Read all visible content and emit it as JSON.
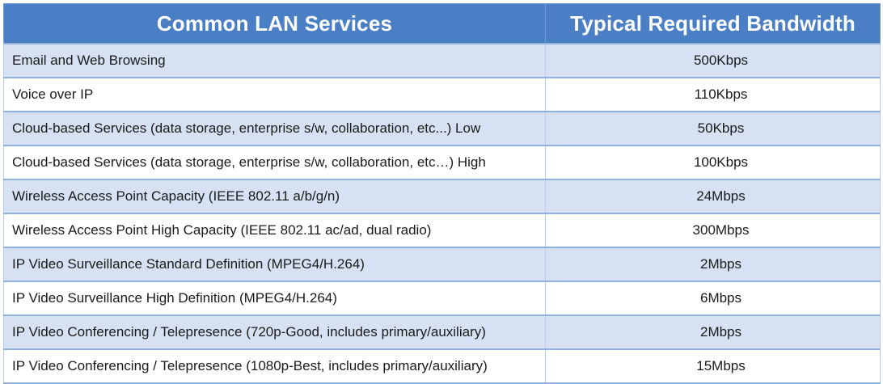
{
  "table": {
    "headers": {
      "service": "Common LAN Services",
      "bandwidth": "Typical Required Bandwidth"
    },
    "rows": [
      {
        "service": "Email and Web Browsing",
        "bandwidth": "500Kbps"
      },
      {
        "service": "Voice over IP",
        "bandwidth": "110Kbps"
      },
      {
        "service": "Cloud-based Services (data storage, enterprise s/w, collaboration, etc...) Low",
        "bandwidth": "50Kbps"
      },
      {
        "service": "Cloud-based Services (data storage, enterprise s/w, collaboration, etc…) High",
        "bandwidth": "100Kbps"
      },
      {
        "service": "Wireless Access Point Capacity (IEEE 802.11 a/b/g/n)",
        "bandwidth": "24Mbps"
      },
      {
        "service": "Wireless Access Point High Capacity (IEEE 802.11 ac/ad, dual radio)",
        "bandwidth": "300Mbps"
      },
      {
        "service": "IP Video Surveillance Standard Definition (MPEG4/H.264)",
        "bandwidth": "2Mbps"
      },
      {
        "service": "IP Video Surveillance High Definition (MPEG4/H.264)",
        "bandwidth": "6Mbps"
      },
      {
        "service": "IP Video Conferencing / Telepresence (720p-Good, includes primary/auxiliary)",
        "bandwidth": "2Mbps"
      },
      {
        "service": "IP Video Conferencing / Telepresence (1080p-Best, includes primary/auxiliary)",
        "bandwidth": "15Mbps"
      }
    ]
  },
  "colors": {
    "header_bg": "#4a7fc6",
    "row_band": "#d6e2f3",
    "row_plain": "#ffffff",
    "rule": "#8fb1de"
  }
}
